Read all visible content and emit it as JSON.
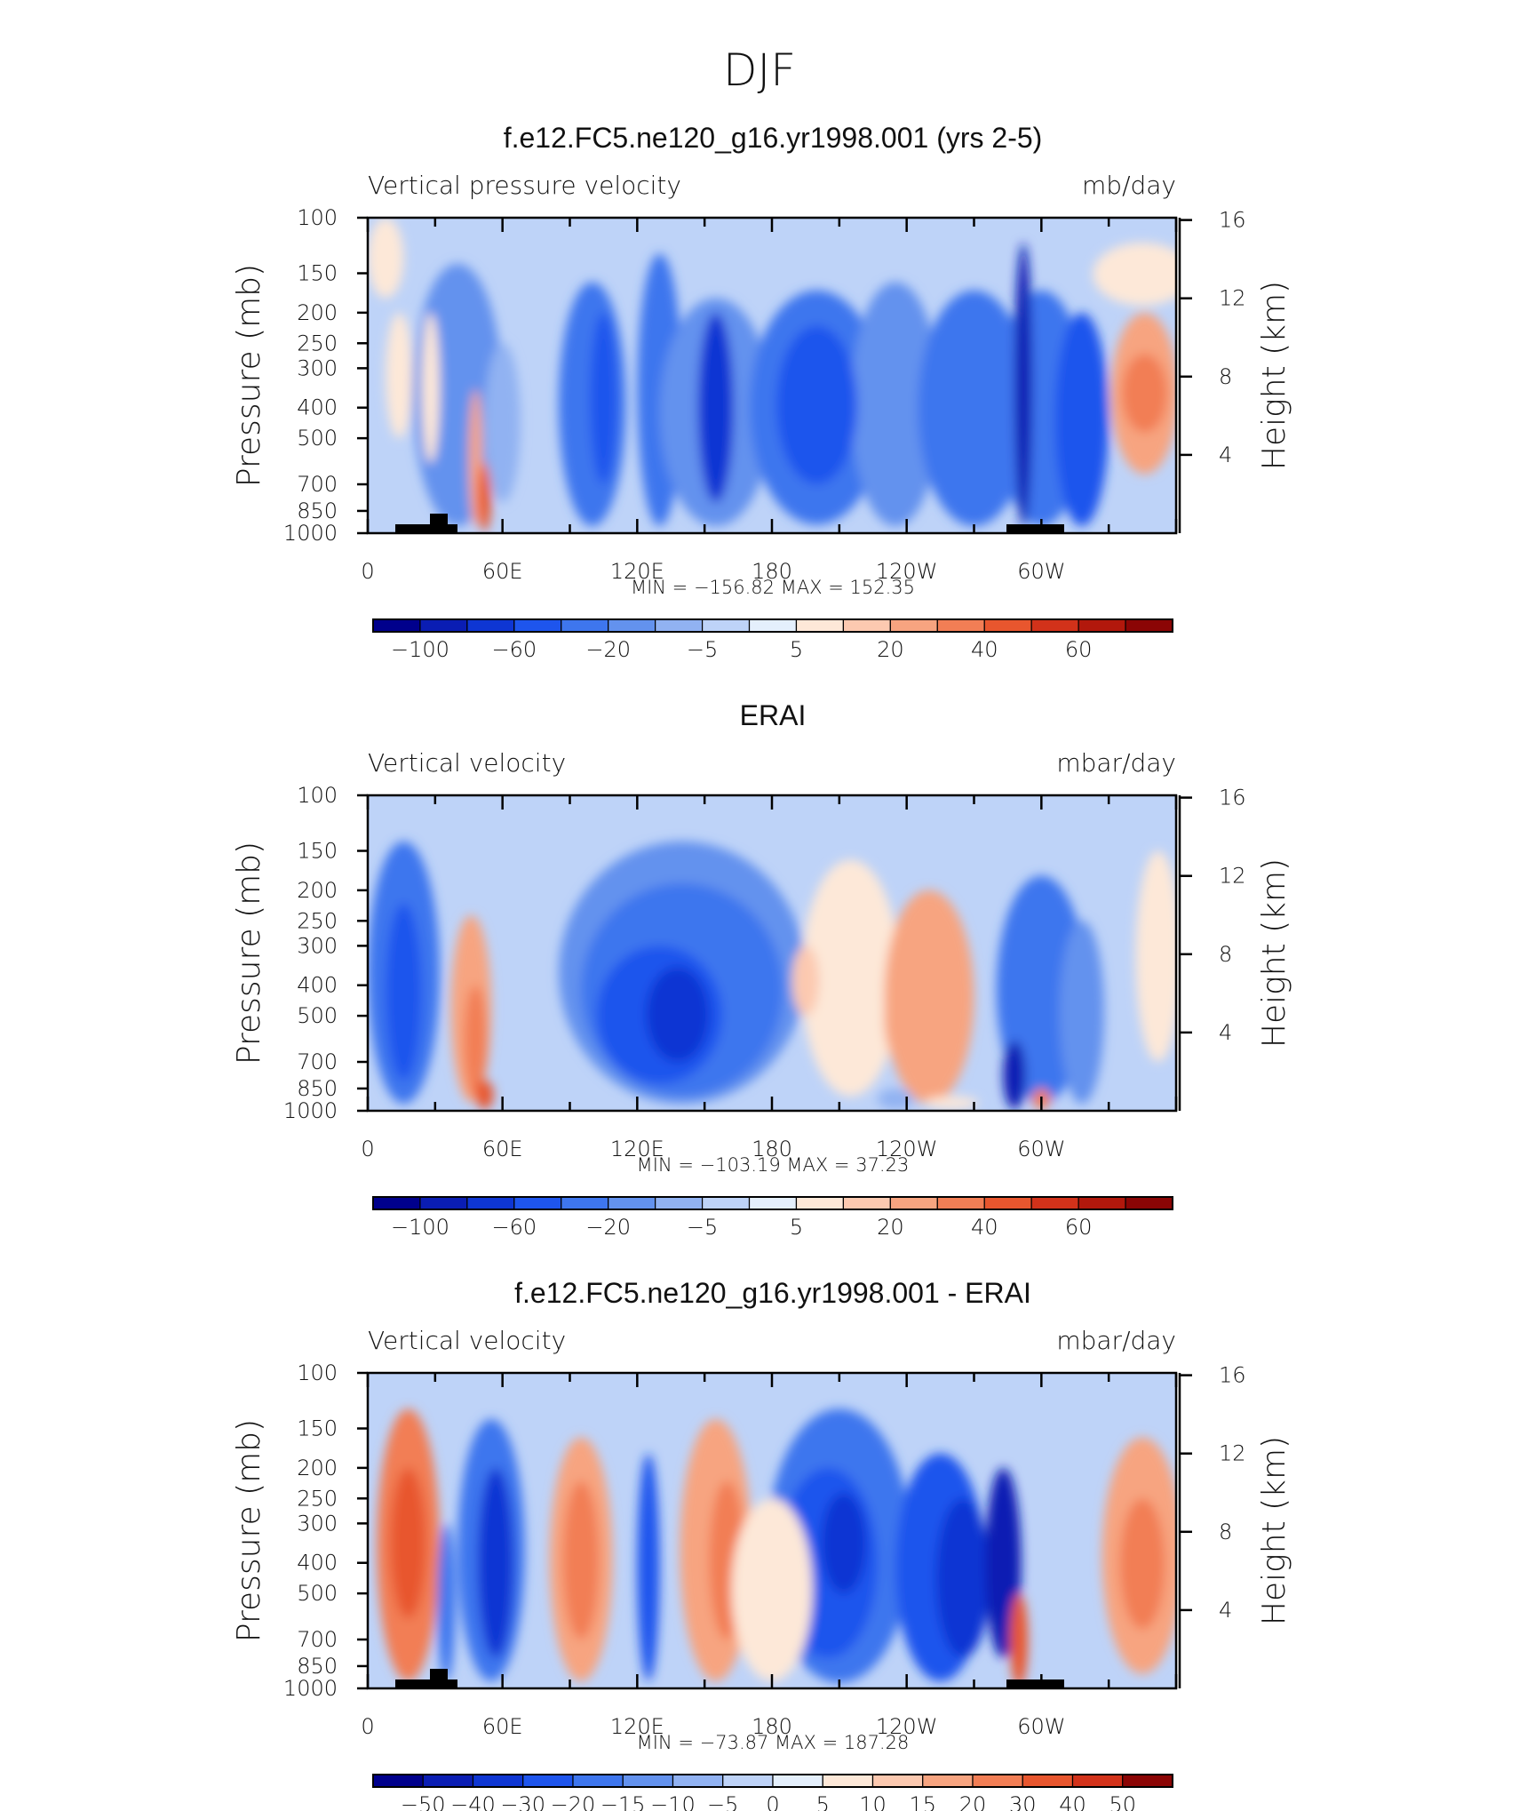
{
  "suptitle": "DJF",
  "chart_data": [
    {
      "type": "contour",
      "title": "f.e12.FC5.ne120_g16.yr1998.001 (yrs 2-5)",
      "left_label": "Vertical pressure velocity",
      "right_label": "mb/day",
      "ylabel": "Pressure (mb)",
      "ylabel_right": "Height (km)",
      "xticks": [
        "0",
        "60E",
        "120E",
        "180",
        "120W",
        "60W"
      ],
      "xtick_values": [
        0,
        60,
        120,
        180,
        240,
        300
      ],
      "xlim": [
        0,
        360
      ],
      "yticks": [
        "100",
        "150",
        "200",
        "250",
        "300",
        "400",
        "500",
        "700",
        "850",
        "1000"
      ],
      "ytick_values": [
        100,
        150,
        200,
        250,
        300,
        400,
        500,
        700,
        850,
        1000
      ],
      "ylim": [
        1000,
        100
      ],
      "height_ticks": [
        "16",
        "12",
        "8",
        "4"
      ],
      "height_values": [
        16,
        12,
        8,
        4
      ],
      "stats": "MIN = −156.82   MAX = 152.35",
      "min": -156.82,
      "max": 152.35,
      "colorbar_labels": [
        "−100",
        "−60",
        "−20",
        "−5",
        "5",
        "20",
        "40",
        "60"
      ],
      "colorbar_levels": [
        -120,
        -100,
        -80,
        -60,
        -40,
        -20,
        -10,
        -5,
        0,
        5,
        10,
        20,
        30,
        40,
        50,
        60
      ],
      "colorbar_colors": [
        "#00008c",
        "#0a1db3",
        "#0e36d3",
        "#1e55ed",
        "#3e76ee",
        "#6392ee",
        "#91b2f2",
        "#bed3f8",
        "#e4effc",
        "#fde8d8",
        "#fcc9b0",
        "#f7a480",
        "#f27e55",
        "#e8562e",
        "#d2321a",
        "#b2180c",
        "#8b0505"
      ]
    },
    {
      "type": "contour",
      "title": "ERAI",
      "left_label": "Vertical velocity",
      "right_label": "mbar/day",
      "ylabel": "Pressure (mb)",
      "ylabel_right": "Height (km)",
      "xticks": [
        "0",
        "60E",
        "120E",
        "180",
        "120W",
        "60W"
      ],
      "xtick_values": [
        0,
        60,
        120,
        180,
        240,
        300
      ],
      "xlim": [
        0,
        360
      ],
      "yticks": [
        "100",
        "150",
        "200",
        "250",
        "300",
        "400",
        "500",
        "700",
        "850",
        "1000"
      ],
      "ytick_values": [
        100,
        150,
        200,
        250,
        300,
        400,
        500,
        700,
        850,
        1000
      ],
      "ylim": [
        1000,
        100
      ],
      "height_ticks": [
        "16",
        "12",
        "8",
        "4"
      ],
      "height_values": [
        16,
        12,
        8,
        4
      ],
      "stats": "MIN = −103.19   MAX =   37.23",
      "min": -103.19,
      "max": 37.23,
      "colorbar_labels": [
        "−100",
        "−60",
        "−20",
        "−5",
        "5",
        "20",
        "40",
        "60"
      ],
      "colorbar_levels": [
        -120,
        -100,
        -80,
        -60,
        -40,
        -20,
        -10,
        -5,
        0,
        5,
        10,
        20,
        30,
        40,
        50,
        60
      ],
      "colorbar_colors": [
        "#00008c",
        "#0a1db3",
        "#0e36d3",
        "#1e55ed",
        "#3e76ee",
        "#6392ee",
        "#91b2f2",
        "#bed3f8",
        "#e4effc",
        "#fde8d8",
        "#fcc9b0",
        "#f7a480",
        "#f27e55",
        "#e8562e",
        "#d2321a",
        "#b2180c",
        "#8b0505"
      ]
    },
    {
      "type": "contour",
      "title": "f.e12.FC5.ne120_g16.yr1998.001 - ERAI",
      "left_label": "Vertical velocity",
      "right_label": "mbar/day",
      "ylabel": "Pressure (mb)",
      "ylabel_right": "Height (km)",
      "xticks": [
        "0",
        "60E",
        "120E",
        "180",
        "120W",
        "60W"
      ],
      "xtick_values": [
        0,
        60,
        120,
        180,
        240,
        300
      ],
      "xlim": [
        0,
        360
      ],
      "yticks": [
        "100",
        "150",
        "200",
        "250",
        "300",
        "400",
        "500",
        "700",
        "850",
        "1000"
      ],
      "ytick_values": [
        100,
        150,
        200,
        250,
        300,
        400,
        500,
        700,
        850,
        1000
      ],
      "ylim": [
        1000,
        100
      ],
      "height_ticks": [
        "16",
        "12",
        "8",
        "4"
      ],
      "height_values": [
        16,
        12,
        8,
        4
      ],
      "stats": "MIN = −73.87   MAX = 187.28",
      "min": -73.87,
      "max": 187.28,
      "colorbar_labels": [
        "−50",
        "−40",
        "−30",
        "−20",
        "−15",
        "−10",
        "−5",
        "0",
        "5",
        "10",
        "15",
        "20",
        "30",
        "40",
        "50"
      ],
      "colorbar_levels": [
        -50,
        -40,
        -30,
        -20,
        -15,
        -10,
        -5,
        0,
        5,
        10,
        15,
        20,
        30,
        40,
        50
      ],
      "colorbar_colors": [
        "#00008c",
        "#0a1db3",
        "#0e36d3",
        "#1e55ed",
        "#3e76ee",
        "#6392ee",
        "#91b2f2",
        "#bed3f8",
        "#e4effc",
        "#fde8d8",
        "#fcc9b0",
        "#f7a480",
        "#f27e55",
        "#e8562e",
        "#d2321a",
        "#8b0505"
      ]
    }
  ]
}
